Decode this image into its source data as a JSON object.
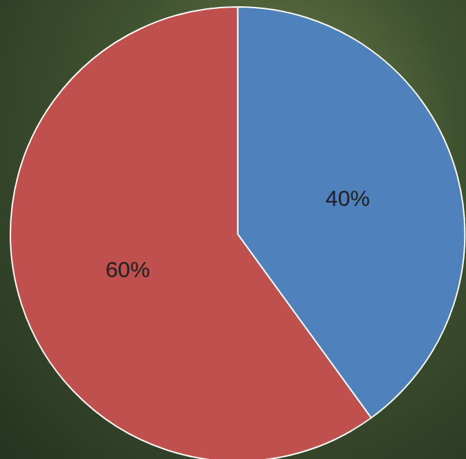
{
  "chart_data": {
    "type": "pie",
    "values": [
      40,
      60
    ],
    "value_labels": [
      "40%",
      "60%"
    ],
    "colors": [
      "#4f81bd",
      "#c0504d"
    ],
    "data_labels": true
  }
}
